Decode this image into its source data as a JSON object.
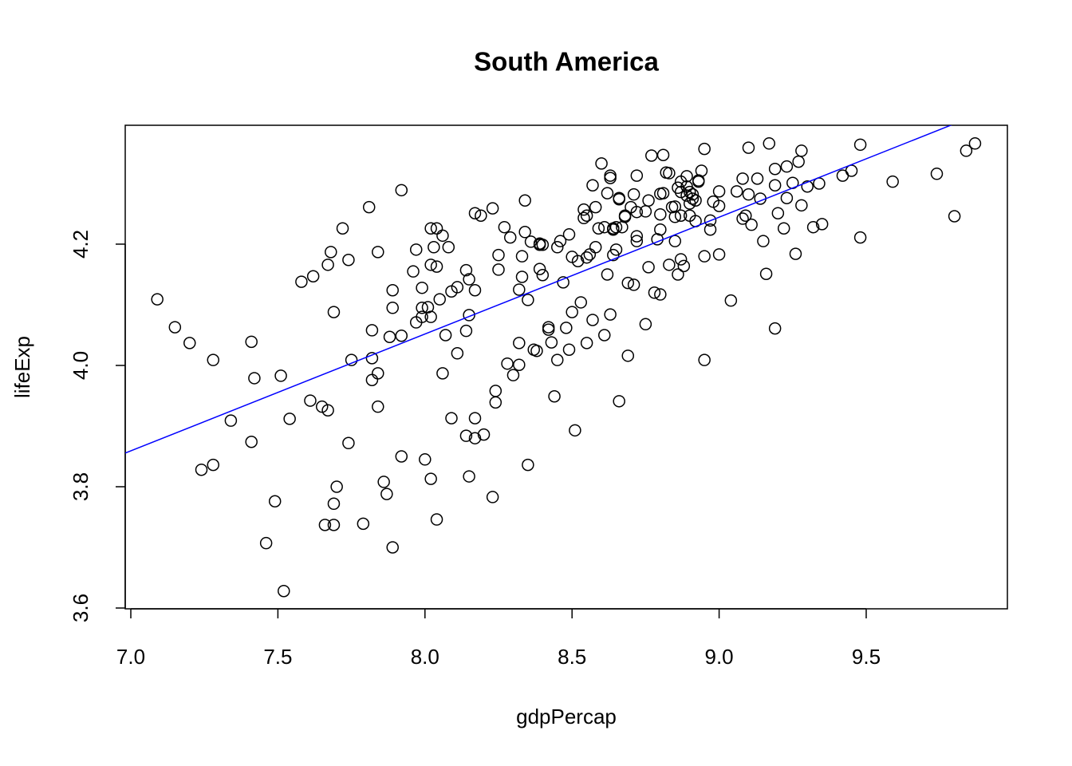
{
  "chart_data": {
    "type": "scatter",
    "title": "South America",
    "x_label": "gdpPercap",
    "y_label": "lifeExp",
    "point_color": "#000000",
    "x": [
      7.09,
      7.15,
      7.2,
      7.28,
      7.24,
      7.28,
      7.34,
      7.41,
      7.42,
      7.41,
      7.51,
      7.49,
      7.46,
      7.52,
      7.54,
      7.58,
      7.61,
      7.62,
      7.65,
      7.67,
      7.67,
      7.68,
      7.69,
      7.69,
      7.7,
      7.66,
      7.69,
      7.72,
      7.74,
      7.74,
      7.75,
      7.79,
      7.81,
      7.82,
      7.82,
      7.82,
      7.84,
      7.84,
      7.84,
      7.86,
      7.87,
      7.88,
      7.89,
      7.89,
      7.89,
      7.92,
      7.92,
      7.92,
      7.96,
      7.97,
      7.97,
      7.99,
      7.99,
      7.99,
      8.0,
      8.01,
      8.02,
      8.02,
      8.02,
      8.02,
      8.03,
      8.04,
      8.04,
      8.04,
      8.05,
      8.06,
      8.06,
      8.07,
      8.08,
      8.09,
      8.09,
      8.11,
      8.11,
      8.14,
      8.14,
      8.14,
      8.15,
      8.15,
      8.15,
      8.17,
      8.17,
      8.17,
      8.17,
      8.2,
      8.19,
      8.23,
      8.24,
      8.24,
      8.23,
      8.25,
      8.25,
      8.27,
      8.28,
      8.29,
      8.3,
      8.32,
      8.32,
      8.32,
      8.33,
      8.34,
      8.33,
      8.34,
      8.35,
      8.35,
      8.36,
      8.37,
      8.38,
      8.39,
      8.39,
      8.39,
      8.4,
      8.4,
      8.42,
      8.42,
      8.43,
      8.44,
      8.45,
      8.45,
      8.46,
      8.47,
      8.48,
      8.49,
      8.5,
      8.49,
      8.5,
      8.51,
      8.52,
      8.53,
      8.54,
      8.54,
      8.55,
      8.55,
      8.55,
      8.56,
      8.57,
      8.57,
      8.58,
      8.58,
      8.59,
      8.6,
      8.61,
      8.62,
      8.61,
      8.62,
      8.63,
      8.63,
      8.63,
      8.64,
      8.64,
      8.64,
      8.65,
      8.65,
      8.66,
      8.66,
      8.66,
      8.67,
      8.68,
      8.68,
      8.69,
      8.69,
      8.7,
      8.71,
      8.71,
      8.72,
      8.72,
      8.72,
      8.72,
      8.75,
      8.75,
      8.76,
      8.76,
      8.77,
      8.78,
      8.79,
      8.8,
      8.8,
      8.8,
      8.8,
      8.81,
      8.81,
      8.82,
      8.83,
      8.83,
      8.84,
      8.85,
      8.85,
      8.86,
      8.85,
      8.86,
      8.87,
      8.87,
      8.87,
      8.87,
      8.88,
      8.89,
      8.89,
      8.89,
      8.9,
      8.9,
      8.9,
      8.91,
      8.91,
      8.92,
      8.92,
      8.93,
      8.93,
      8.94,
      8.95,
      8.95,
      8.95,
      8.97,
      8.97,
      8.98,
      9.0,
      9.0,
      9.0,
      9.04,
      9.06,
      9.08,
      9.08,
      9.09,
      9.1,
      9.1,
      9.11,
      9.13,
      9.14,
      9.15,
      9.16,
      9.17,
      9.19,
      9.19,
      9.19,
      9.2,
      9.22,
      9.23,
      9.23,
      9.25,
      9.26,
      9.27,
      9.28,
      9.28,
      9.3,
      9.32,
      9.34,
      9.35,
      9.42,
      9.45,
      9.48,
      9.48,
      9.59,
      9.74,
      9.8,
      9.84,
      9.87
    ],
    "values": [
      4.109,
      4.063,
      4.037,
      4.009,
      3.828,
      3.836,
      3.909,
      4.039,
      3.979,
      3.874,
      3.983,
      3.776,
      3.707,
      3.628,
      3.912,
      4.138,
      3.942,
      4.147,
      3.932,
      3.926,
      4.166,
      4.187,
      4.088,
      3.772,
      3.8,
      3.737,
      3.737,
      4.226,
      4.174,
      3.872,
      4.009,
      3.739,
      4.261,
      4.058,
      4.012,
      3.976,
      3.987,
      4.187,
      3.932,
      3.808,
      3.788,
      4.047,
      3.7,
      4.124,
      4.095,
      4.289,
      3.85,
      4.049,
      4.155,
      4.191,
      4.071,
      4.128,
      4.095,
      4.08,
      3.845,
      4.096,
      4.08,
      4.166,
      3.813,
      4.226,
      4.195,
      4.163,
      4.226,
      3.746,
      4.109,
      3.987,
      4.214,
      4.05,
      4.195,
      3.913,
      4.122,
      4.129,
      4.02,
      4.157,
      4.057,
      3.884,
      4.142,
      4.083,
      3.817,
      4.124,
      3.913,
      3.88,
      4.251,
      3.886,
      4.247,
      4.259,
      3.958,
      3.939,
      3.783,
      4.182,
      4.158,
      4.228,
      4.003,
      4.211,
      3.984,
      4.125,
      4.037,
      4.001,
      4.146,
      4.272,
      4.18,
      4.22,
      3.836,
      4.108,
      4.204,
      4.026,
      4.024,
      4.201,
      4.159,
      4.199,
      4.149,
      4.199,
      4.063,
      4.059,
      4.038,
      3.949,
      4.195,
      4.009,
      4.205,
      4.137,
      4.062,
      4.216,
      4.179,
      4.026,
      4.088,
      3.893,
      4.172,
      4.104,
      4.257,
      4.243,
      4.037,
      4.178,
      4.247,
      4.183,
      4.297,
      4.075,
      4.261,
      4.195,
      4.226,
      4.333,
      4.05,
      4.15,
      4.228,
      4.284,
      4.309,
      4.084,
      4.313,
      4.224,
      4.182,
      4.226,
      4.228,
      4.191,
      4.276,
      4.274,
      3.941,
      4.228,
      4.245,
      4.247,
      4.136,
      4.016,
      4.261,
      4.282,
      4.133,
      4.253,
      4.213,
      4.313,
      4.205,
      4.068,
      4.254,
      4.162,
      4.272,
      4.346,
      4.12,
      4.208,
      4.224,
      4.283,
      4.249,
      4.117,
      4.347,
      4.284,
      4.318,
      4.166,
      4.317,
      4.261,
      4.205,
      4.262,
      4.293,
      4.245,
      4.15,
      4.303,
      4.247,
      4.175,
      4.286,
      4.164,
      4.28,
      4.312,
      4.295,
      4.247,
      4.267,
      4.286,
      4.282,
      4.275,
      4.238,
      4.272,
      4.303,
      4.305,
      4.321,
      4.009,
      4.357,
      4.18,
      4.224,
      4.239,
      4.27,
      4.183,
      4.287,
      4.263,
      4.107,
      4.287,
      4.308,
      4.242,
      4.247,
      4.359,
      4.282,
      4.232,
      4.308,
      4.275,
      4.205,
      4.151,
      4.366,
      4.297,
      4.061,
      4.324,
      4.251,
      4.226,
      4.328,
      4.276,
      4.301,
      4.184,
      4.336,
      4.354,
      4.264,
      4.295,
      4.228,
      4.3,
      4.233,
      4.313,
      4.321,
      4.364,
      4.211,
      4.303,
      4.316,
      4.246,
      4.354,
      4.366
    ],
    "trend_line": {
      "intercept": 2.511,
      "slope": 0.1926,
      "color": "#0000ff"
    },
    "xlim": [
      6.981,
      9.98
    ],
    "ylim": [
      3.5987,
      4.396
    ],
    "xticks": [
      {
        "value": 7,
        "label": "7.0"
      },
      {
        "value": 7.5,
        "label": "7.5"
      },
      {
        "value": 8,
        "label": "8.0"
      },
      {
        "value": 8.5,
        "label": "8.5"
      },
      {
        "value": 9,
        "label": "9.0"
      },
      {
        "value": 9.5,
        "label": "9.5"
      }
    ],
    "yticks": [
      3.6,
      3.8,
      {
        "value": 4,
        "label": "4.0"
      },
      4.2
    ]
  }
}
